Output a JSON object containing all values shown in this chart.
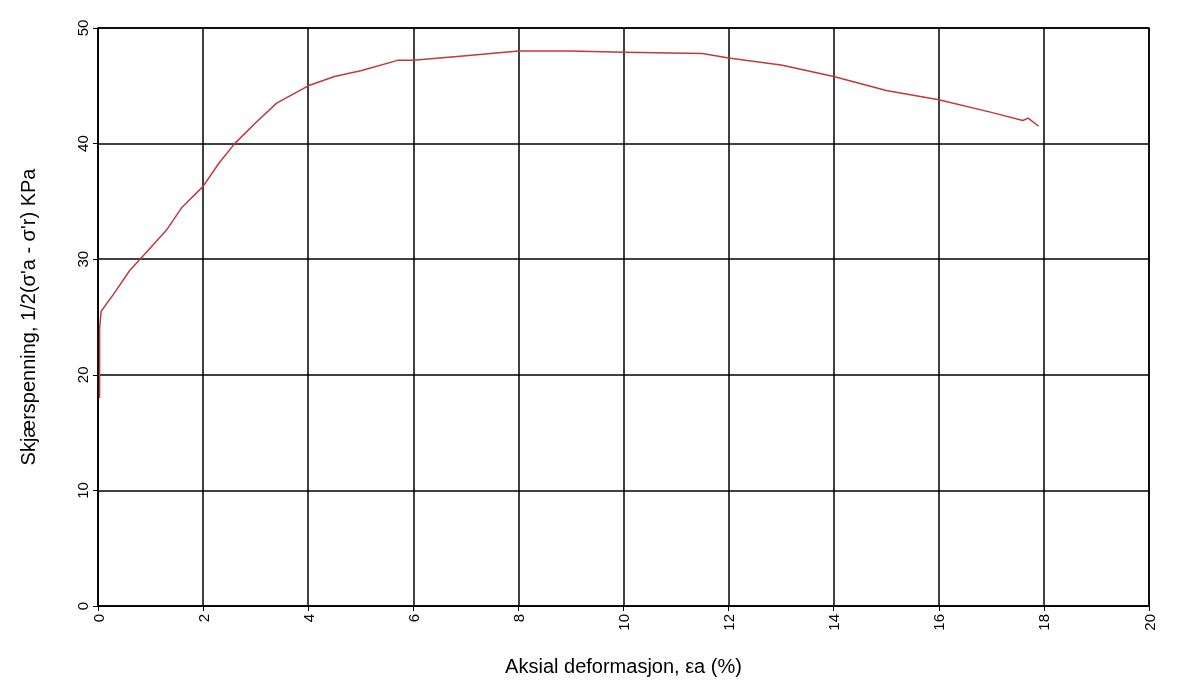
{
  "chart_data": {
    "type": "line",
    "xlabel": "Aksial deformasjon, εa (%)",
    "ylabel": "Skjærspenning, 1/2(σ'a - σ'r) KPa",
    "xlim": [
      0,
      20
    ],
    "xticks": [
      0,
      2,
      4,
      6,
      8,
      10,
      12,
      14,
      16,
      18,
      20
    ],
    "ylim": [
      0,
      50
    ],
    "yticks": [
      0,
      10,
      20,
      30,
      40,
      50
    ],
    "grid": true,
    "marker": "none",
    "line_style": "solid",
    "series": [
      {
        "color": "#c0393b",
        "x": [
          0.03,
          0.03,
          0.06,
          0.3,
          0.6,
          0.9,
          1.3,
          1.6,
          2.0,
          2.3,
          2.6,
          3.0,
          3.4,
          4.0,
          4.5,
          5.0,
          5.7,
          6.0,
          7.0,
          8.0,
          9.0,
          10.0,
          11.5,
          12.0,
          13.0,
          14.0,
          15.0,
          16.0,
          17.0,
          17.6,
          17.7,
          17.9
        ],
        "values": [
          18,
          24,
          25.5,
          27,
          29,
          30.5,
          32.5,
          34.5,
          36.3,
          38.3,
          40,
          41.8,
          43.5,
          45,
          45.8,
          46.3,
          47.2,
          47.2,
          47.6,
          48,
          48,
          47.9,
          47.8,
          47.4,
          46.8,
          45.8,
          44.6,
          43.8,
          42.7,
          42,
          42.2,
          41.5
        ]
      }
    ]
  }
}
